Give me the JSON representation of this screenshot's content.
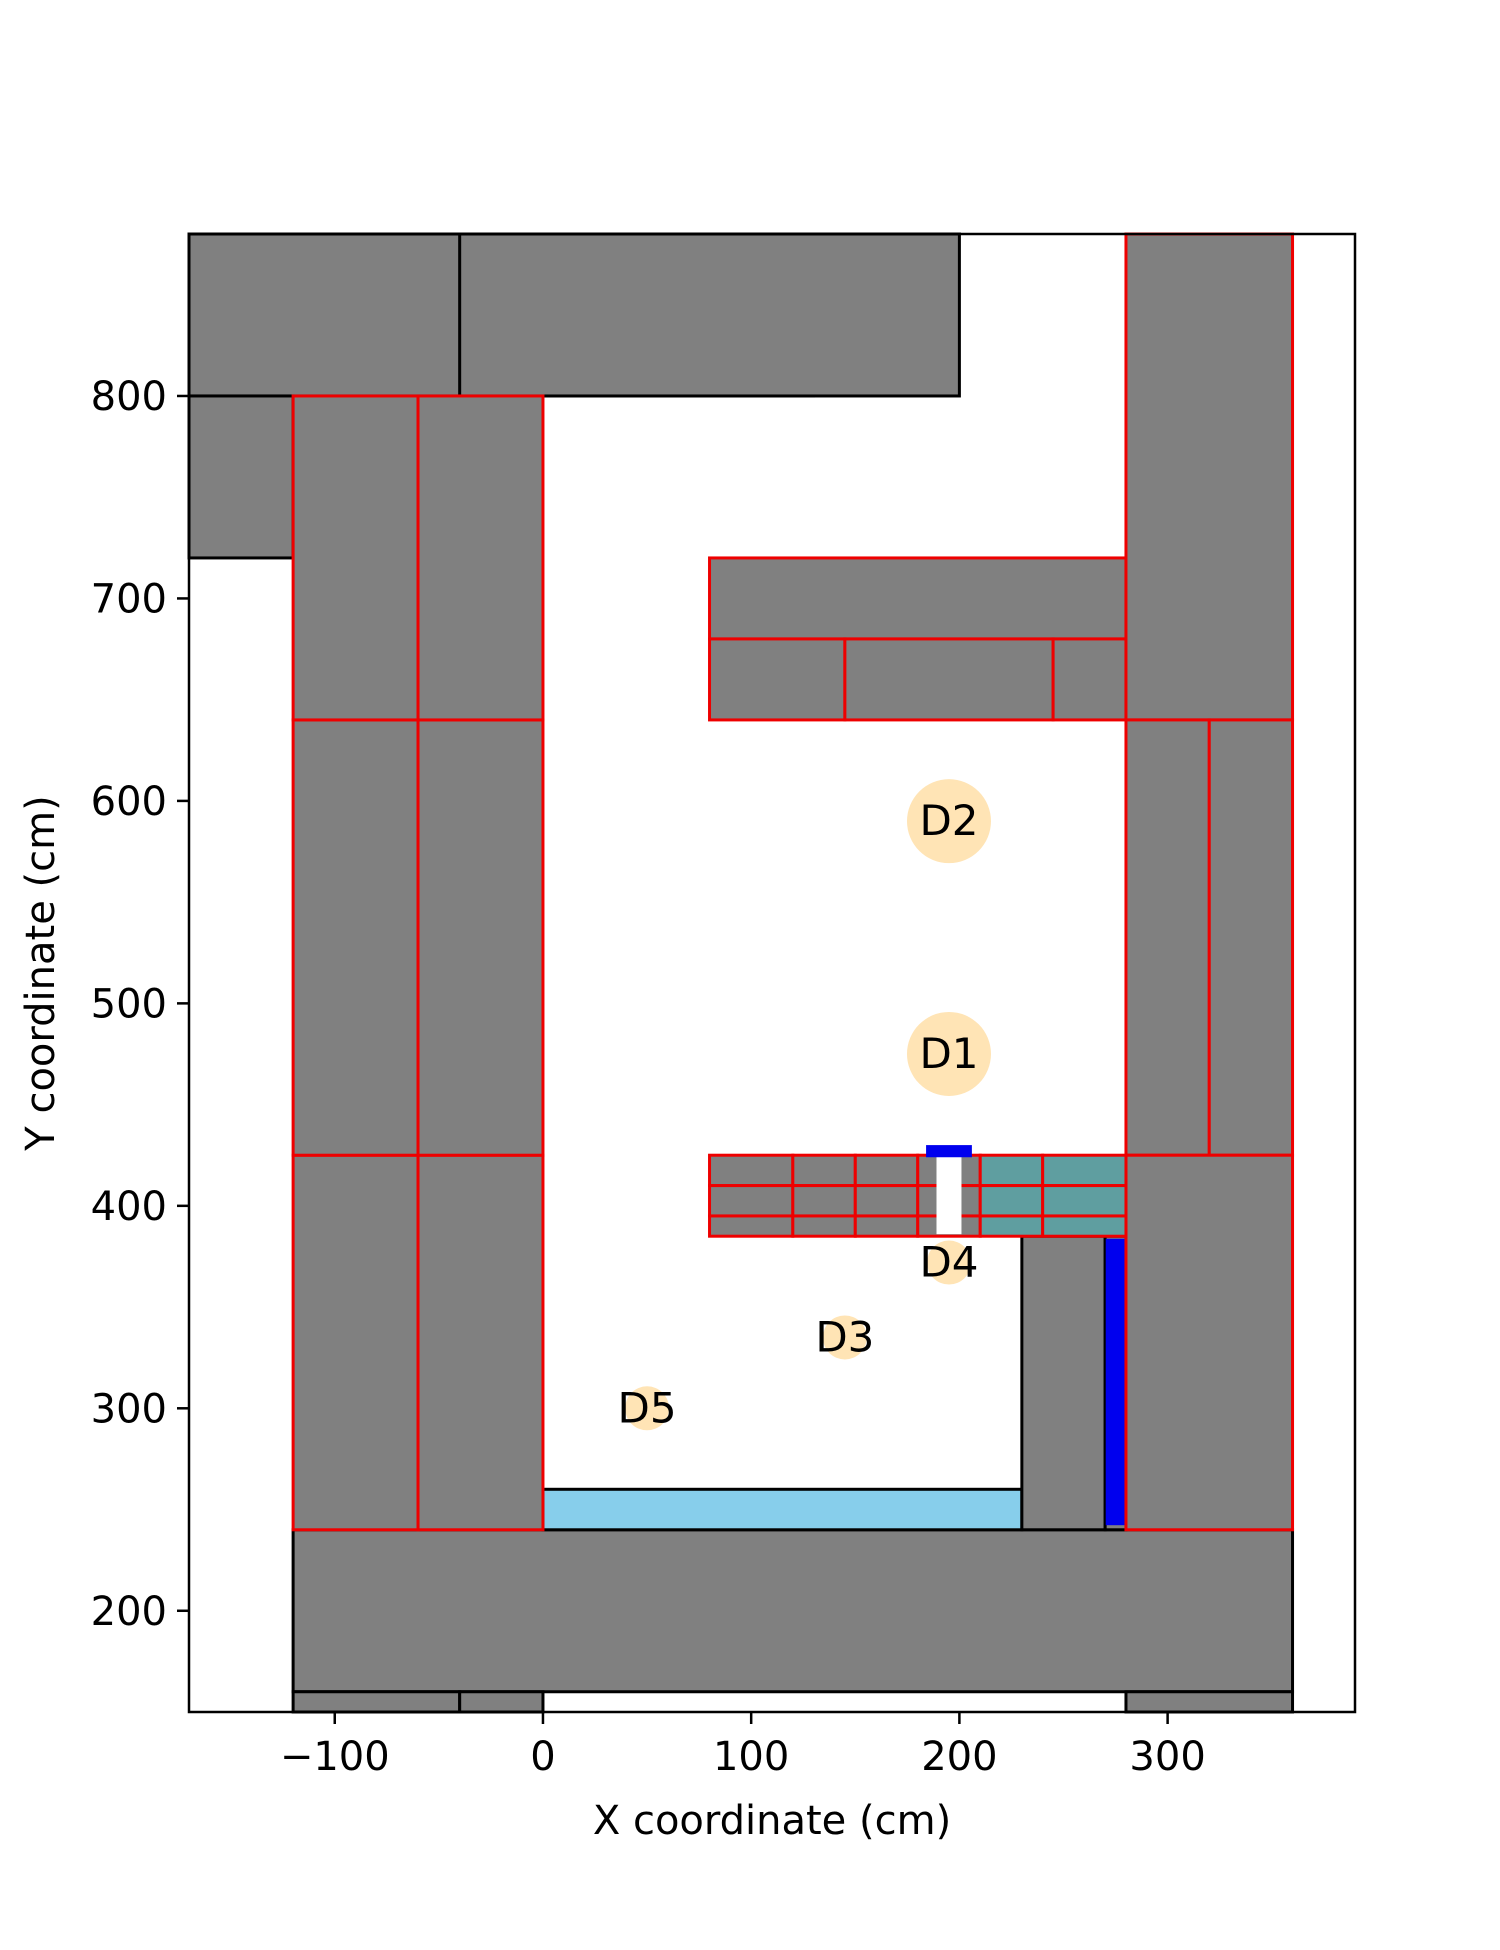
{
  "chart_data": {
    "type": "floor-plan",
    "xlabel": "X coordinate (cm)",
    "ylabel": "Y coordinate (cm)",
    "xlim": [
      -170,
      390
    ],
    "ylim": [
      150,
      880
    ],
    "xticks": [
      -100,
      0,
      100,
      200,
      300
    ],
    "yticks": [
      200,
      300,
      400,
      500,
      600,
      700,
      800
    ],
    "xtick_labels": [
      "−100",
      "0",
      "100",
      "200",
      "300"
    ],
    "ytick_labels": [
      "200",
      "300",
      "400",
      "500",
      "600",
      "700",
      "800"
    ],
    "grid": false,
    "colors": {
      "furniture_fill": "#808080",
      "edge_black": "#000000",
      "edge_red": "#ee0000",
      "water_fill": "#87ceeb",
      "teal_fill": "#5f9ea0",
      "blue": "#0000ee",
      "marker_fill": "#ffe4b5"
    },
    "rects": [
      {
        "x": -170,
        "y": 800,
        "w": 300,
        "h": 80,
        "fill": "furniture_fill",
        "edge": "edge_black"
      },
      {
        "x": -40,
        "y": 800,
        "w": 240,
        "h": 80,
        "fill": "furniture_fill",
        "edge": "edge_black"
      },
      {
        "x": -170,
        "y": 720,
        "w": 50,
        "h": 80,
        "fill": "furniture_fill",
        "edge": "edge_black"
      },
      {
        "x": -120,
        "y": 160,
        "w": 480,
        "h": 80,
        "fill": "furniture_fill",
        "edge": "edge_black"
      },
      {
        "x": -120,
        "y": 150,
        "w": 80,
        "h": 10,
        "fill": "furniture_fill",
        "edge": "edge_black"
      },
      {
        "x": -40,
        "y": 150,
        "w": 40,
        "h": 10,
        "fill": "furniture_fill",
        "edge": "edge_black"
      },
      {
        "x": 280,
        "y": 150,
        "w": 80,
        "h": 10,
        "fill": "furniture_fill",
        "edge": "edge_black"
      },
      {
        "x": 0,
        "y": 240,
        "w": 230,
        "h": 20,
        "fill": "water_fill",
        "edge": "edge_black"
      },
      {
        "x": 230,
        "y": 240,
        "w": 40,
        "h": 145,
        "fill": "furniture_fill",
        "edge": "edge_black"
      },
      {
        "x": 270,
        "y": 240,
        "w": 10,
        "h": 145,
        "fill": "furniture_fill",
        "edge": "edge_black"
      },
      {
        "x": 271,
        "y": 243,
        "w": 8,
        "h": 140,
        "fill": "blue",
        "edge": "blue"
      },
      {
        "x": -120,
        "y": 240,
        "w": 60,
        "h": 185,
        "fill": "furniture_fill",
        "edge": "edge_red"
      },
      {
        "x": -60,
        "y": 240,
        "w": 60,
        "h": 185,
        "fill": "furniture_fill",
        "edge": "edge_red"
      },
      {
        "x": -120,
        "y": 425,
        "w": 60,
        "h": 215,
        "fill": "furniture_fill",
        "edge": "edge_red"
      },
      {
        "x": -60,
        "y": 425,
        "w": 60,
        "h": 215,
        "fill": "furniture_fill",
        "edge": "edge_red"
      },
      {
        "x": -120,
        "y": 640,
        "w": 60,
        "h": 160,
        "fill": "furniture_fill",
        "edge": "edge_red"
      },
      {
        "x": -60,
        "y": 640,
        "w": 60,
        "h": 160,
        "fill": "furniture_fill",
        "edge": "edge_red"
      },
      {
        "x": 80,
        "y": 680,
        "w": 200,
        "h": 40,
        "fill": "furniture_fill",
        "edge": "edge_red"
      },
      {
        "x": 80,
        "y": 640,
        "w": 65,
        "h": 40,
        "fill": "furniture_fill",
        "edge": "edge_red"
      },
      {
        "x": 145,
        "y": 640,
        "w": 100,
        "h": 40,
        "fill": "furniture_fill",
        "edge": "edge_red"
      },
      {
        "x": 245,
        "y": 640,
        "w": 35,
        "h": 40,
        "fill": "furniture_fill",
        "edge": "edge_red"
      },
      {
        "x": 280,
        "y": 640,
        "w": 80,
        "h": 240,
        "fill": "furniture_fill",
        "edge": "edge_red"
      },
      {
        "x": 280,
        "y": 425,
        "w": 40,
        "h": 215,
        "fill": "furniture_fill",
        "edge": "edge_red"
      },
      {
        "x": 320,
        "y": 425,
        "w": 40,
        "h": 215,
        "fill": "furniture_fill",
        "edge": "edge_red"
      },
      {
        "x": 280,
        "y": 240,
        "w": 80,
        "h": 185,
        "fill": "furniture_fill",
        "edge": "edge_red"
      },
      {
        "x": 80,
        "y": 410,
        "w": 40,
        "h": 15,
        "fill": "furniture_fill",
        "edge": "edge_red"
      },
      {
        "x": 120,
        "y": 410,
        "w": 30,
        "h": 15,
        "fill": "furniture_fill",
        "edge": "edge_red"
      },
      {
        "x": 150,
        "y": 410,
        "w": 30,
        "h": 15,
        "fill": "furniture_fill",
        "edge": "edge_red"
      },
      {
        "x": 180,
        "y": 410,
        "w": 30,
        "h": 15,
        "fill": "furniture_fill",
        "edge": "edge_red"
      },
      {
        "x": 210,
        "y": 410,
        "w": 30,
        "h": 15,
        "fill": "teal_fill",
        "edge": "edge_red"
      },
      {
        "x": 240,
        "y": 410,
        "w": 40,
        "h": 15,
        "fill": "teal_fill",
        "edge": "edge_red"
      },
      {
        "x": 80,
        "y": 395,
        "w": 40,
        "h": 15,
        "fill": "furniture_fill",
        "edge": "edge_red"
      },
      {
        "x": 120,
        "y": 395,
        "w": 30,
        "h": 15,
        "fill": "furniture_fill",
        "edge": "edge_red"
      },
      {
        "x": 150,
        "y": 395,
        "w": 30,
        "h": 15,
        "fill": "furniture_fill",
        "edge": "edge_red"
      },
      {
        "x": 180,
        "y": 395,
        "w": 30,
        "h": 15,
        "fill": "furniture_fill",
        "edge": "edge_red"
      },
      {
        "x": 210,
        "y": 395,
        "w": 30,
        "h": 15,
        "fill": "teal_fill",
        "edge": "edge_red"
      },
      {
        "x": 240,
        "y": 395,
        "w": 40,
        "h": 15,
        "fill": "teal_fill",
        "edge": "edge_red"
      },
      {
        "x": 80,
        "y": 385,
        "w": 40,
        "h": 10,
        "fill": "furniture_fill",
        "edge": "edge_red"
      },
      {
        "x": 120,
        "y": 385,
        "w": 30,
        "h": 10,
        "fill": "furniture_fill",
        "edge": "edge_red"
      },
      {
        "x": 150,
        "y": 385,
        "w": 30,
        "h": 10,
        "fill": "furniture_fill",
        "edge": "edge_red"
      },
      {
        "x": 180,
        "y": 385,
        "w": 30,
        "h": 10,
        "fill": "furniture_fill",
        "edge": "edge_red"
      },
      {
        "x": 210,
        "y": 385,
        "w": 30,
        "h": 10,
        "fill": "teal_fill",
        "edge": "edge_red"
      },
      {
        "x": 240,
        "y": 385,
        "w": 40,
        "h": 10,
        "fill": "teal_fill",
        "edge": "edge_red"
      },
      {
        "x": 189,
        "y": 386,
        "w": 12,
        "h": 39,
        "fill": "white",
        "edge": "none"
      },
      {
        "x": 184,
        "y": 424,
        "w": 22,
        "h": 6,
        "fill": "blue",
        "edge": "none"
      }
    ],
    "markers": [
      {
        "label": "D1",
        "x": 195,
        "y": 475,
        "size": "large"
      },
      {
        "label": "D2",
        "x": 195,
        "y": 590,
        "size": "large"
      },
      {
        "label": "D3",
        "x": 145,
        "y": 335,
        "size": "small"
      },
      {
        "label": "D4",
        "x": 195,
        "y": 372,
        "size": "small"
      },
      {
        "label": "D5",
        "x": 50,
        "y": 300,
        "size": "small"
      }
    ]
  }
}
